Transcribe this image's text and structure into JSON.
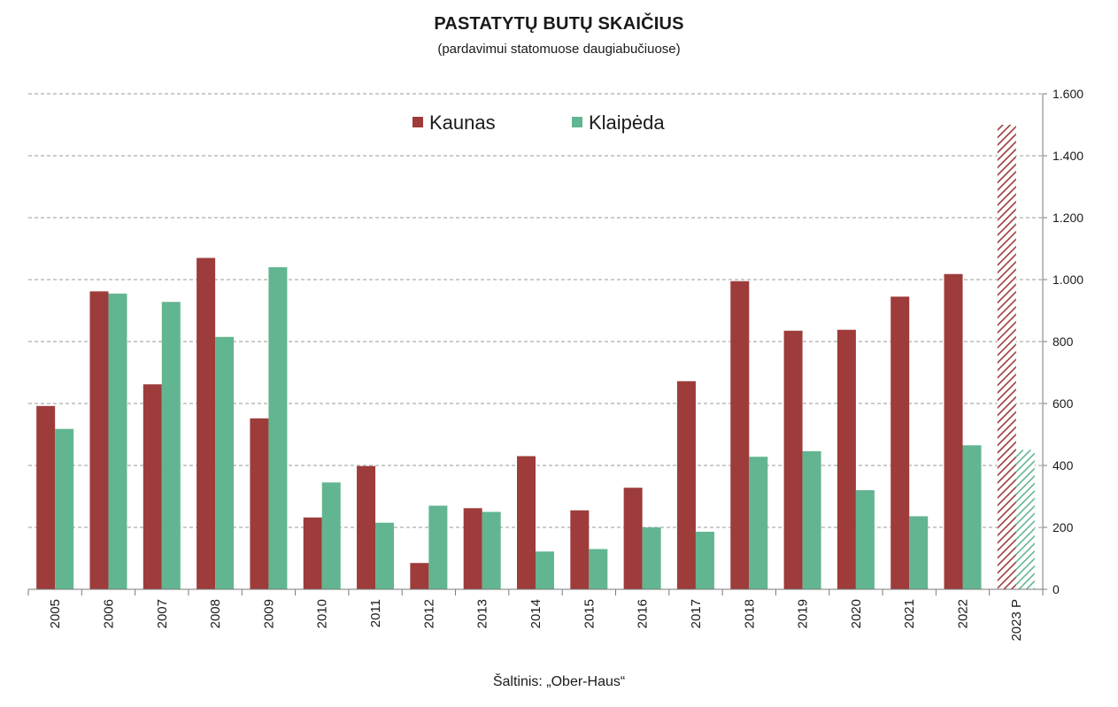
{
  "chart_data": {
    "type": "bar",
    "title": "PASTATYTŲ BUTŲ SKAIČIUS",
    "subtitle": "(pardavimui statomuose daugiabučiuose)",
    "source": "Šaltinis: „Ober-Haus“",
    "categories": [
      "2005",
      "2006",
      "2007",
      "2008",
      "2009",
      "2010",
      "2011",
      "2012",
      "2013",
      "2014",
      "2015",
      "2016",
      "2017",
      "2018",
      "2019",
      "2020",
      "2021",
      "2022",
      "2023 P"
    ],
    "series": [
      {
        "name": "Kaunas",
        "color": "#9e3b3b",
        "values": [
          592,
          962,
          662,
          1070,
          552,
          232,
          398,
          85,
          262,
          430,
          255,
          328,
          672,
          995,
          835,
          838,
          945,
          1018,
          1500
        ]
      },
      {
        "name": "Klaipėda",
        "color": "#62b591",
        "values": [
          518,
          955,
          928,
          815,
          1040,
          345,
          215,
          270,
          250,
          122,
          130,
          200,
          186,
          428,
          446,
          320,
          236,
          465,
          450
        ]
      }
    ],
    "forecast_categories": [
      "2023 P"
    ],
    "ylim": [
      0,
      1600
    ],
    "yticks": [
      0,
      200,
      400,
      600,
      800,
      1000,
      1200,
      1400,
      1600
    ],
    "ytick_labels": [
      "0",
      "200",
      "400",
      "600",
      "800",
      "1.000",
      "1.200",
      "1.400",
      "1.600"
    ],
    "y_axis_side": "right",
    "grid": "horizontal-dashed",
    "legend": "top-center",
    "xlabel": "",
    "ylabel": ""
  }
}
